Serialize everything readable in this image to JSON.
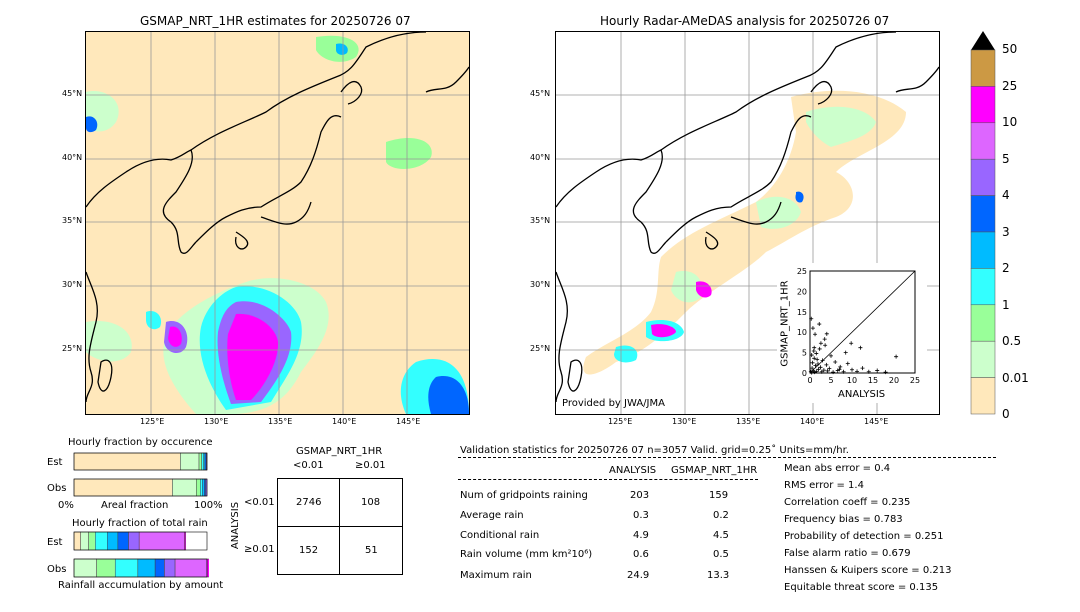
{
  "left_map": {
    "title": "GSMAP_NRT_1HR estimates for 20250726 07",
    "lat_labels": [
      "45°N",
      "40°N",
      "35°N",
      "30°N",
      "25°N"
    ],
    "lon_labels": [
      "125°E",
      "130°E",
      "135°E",
      "140°E",
      "145°E"
    ]
  },
  "right_map": {
    "title": "Hourly Radar-AMeDAS analysis for 20250726 07",
    "lat_labels": [
      "45°N",
      "40°N",
      "35°N",
      "30°N",
      "25°N"
    ],
    "lon_labels": [
      "125°E",
      "130°E",
      "135°E",
      "140°E",
      "145°E"
    ],
    "credit": "Provided by JWA/JMA"
  },
  "colorbar": {
    "labels": [
      "50",
      "25",
      "10",
      "5",
      "4",
      "3",
      "2",
      "1",
      "0.5",
      "0.01",
      "0"
    ],
    "colors": [
      "#cc9944",
      "#ff00ff",
      "#dd66ff",
      "#9966ff",
      "#0066ff",
      "#00bbff",
      "#33ffff",
      "#99ff99",
      "#ccffcc",
      "#ffe8bb"
    ]
  },
  "chart_data": [
    {
      "type": "scatter",
      "title": "",
      "xlabel": "ANALYSIS",
      "ylabel": "GSMAP_NRT_1HR",
      "xlim": [
        0,
        25
      ],
      "ylim": [
        0,
        25
      ],
      "xticks": [
        "0",
        "5",
        "10",
        "15",
        "20",
        "25"
      ],
      "yticks": [
        "0",
        "5",
        "10",
        "15",
        "20",
        "25"
      ],
      "points": [
        [
          0.2,
          0.3
        ],
        [
          0.4,
          0.1
        ],
        [
          0.5,
          1.2
        ],
        [
          0.6,
          2.5
        ],
        [
          0.8,
          0.5
        ],
        [
          1.0,
          3.6
        ],
        [
          1.1,
          0.2
        ],
        [
          1.3,
          1.8
        ],
        [
          1.5,
          4.8
        ],
        [
          1.6,
          0.4
        ],
        [
          1.9,
          2.2
        ],
        [
          2.0,
          0.9
        ],
        [
          2.3,
          5.9
        ],
        [
          2.5,
          1.4
        ],
        [
          2.8,
          0.3
        ],
        [
          3.0,
          3.1
        ],
        [
          3.3,
          0.7
        ],
        [
          3.6,
          6.8
        ],
        [
          3.9,
          2.0
        ],
        [
          4.2,
          0.5
        ],
        [
          4.6,
          1.1
        ],
        [
          5.0,
          4.2
        ],
        [
          5.5,
          0.2
        ],
        [
          6.0,
          2.7
        ],
        [
          6.6,
          0.6
        ],
        [
          7.2,
          1.5
        ],
        [
          8.0,
          0.3
        ],
        [
          9.0,
          2.3
        ],
        [
          10.0,
          0.8
        ],
        [
          11.2,
          0.4
        ],
        [
          12.5,
          1.2
        ],
        [
          14.0,
          0.3
        ],
        [
          16.0,
          0.6
        ],
        [
          18.0,
          0.2
        ],
        [
          20.5,
          4.0
        ],
        [
          1.2,
          9.5
        ],
        [
          0.7,
          11.0
        ],
        [
          2.2,
          12.0
        ],
        [
          3.5,
          8.3
        ],
        [
          0.3,
          13.3
        ],
        [
          1.0,
          6.2
        ],
        [
          2.6,
          7.3
        ],
        [
          0.4,
          4.4
        ],
        [
          0.9,
          5.4
        ],
        [
          1.7,
          3.3
        ],
        [
          4.0,
          9.6
        ],
        [
          7.0,
          0.9
        ],
        [
          8.5,
          5.0
        ],
        [
          12.0,
          6.2
        ],
        [
          9.8,
          7.3
        ]
      ]
    },
    {
      "type": "bar",
      "title": "Hourly fraction by occurence",
      "categories": [
        "Est",
        "Obs"
      ],
      "xlabels": [
        "0%",
        "Areal fraction",
        "100%"
      ],
      "series": [
        {
          "values": [
            0.8,
            0.74
          ],
          "color": "#ffe8bb"
        },
        {
          "values": [
            0.14,
            0.18
          ],
          "color": "#ccffcc"
        },
        {
          "values": [
            0.02,
            0.03
          ],
          "color": "#99ff99"
        },
        {
          "values": [
            0.015,
            0.015
          ],
          "color": "#33ffff"
        },
        {
          "values": [
            0.01,
            0.015
          ],
          "color": "#00bbff"
        },
        {
          "values": [
            0.01,
            0.01
          ],
          "color": "#0066ff"
        },
        {
          "values": [
            0.005,
            0.01
          ],
          "color": "#9966ff"
        }
      ]
    },
    {
      "type": "bar",
      "title": "Hourly fraction of total rain",
      "categories": [
        "Est",
        "Obs"
      ],
      "xlabels": [
        "Rainfall accumulation by amount"
      ],
      "series": [
        {
          "values": [
            0.05,
            0.0
          ],
          "color": "#ffe8bb"
        },
        {
          "values": [
            0.06,
            0.17
          ],
          "color": "#ccffcc"
        },
        {
          "values": [
            0.05,
            0.14
          ],
          "color": "#99ff99"
        },
        {
          "values": [
            0.09,
            0.17
          ],
          "color": "#33ffff"
        },
        {
          "values": [
            0.08,
            0.13
          ],
          "color": "#00bbff"
        },
        {
          "values": [
            0.08,
            0.07
          ],
          "color": "#0066ff"
        },
        {
          "values": [
            0.08,
            0.08
          ],
          "color": "#9966ff"
        },
        {
          "values": [
            0.34,
            0.24
          ],
          "color": "#dd66ff"
        },
        {
          "values": [
            0.01,
            0.33
          ],
          "color": "#ff00ff"
        }
      ]
    },
    {
      "type": "table",
      "title": "GSMAP_NRT_1HR",
      "col_headers": [
        "<0.01",
        "≥0.01"
      ],
      "row_label": "ANALYSIS",
      "row_headers": [
        "<0.01",
        "≥0.01"
      ],
      "cells": [
        [
          "2746",
          "108"
        ],
        [
          "152",
          "51"
        ]
      ]
    }
  ],
  "validation": {
    "title": "Validation statistics for 20250726 07  n=3057 Valid. grid=0.25˚ Units=mm/hr.",
    "col1": "ANALYSIS",
    "col2": "GSMAP_NRT_1HR",
    "rows": [
      {
        "label": "Num of gridpoints raining",
        "a": "203",
        "g": "159"
      },
      {
        "label": "Average rain",
        "a": "0.3",
        "g": "0.2"
      },
      {
        "label": "Conditional rain",
        "a": "4.9",
        "g": "4.5"
      },
      {
        "label": "Rain volume (mm km²10⁶)",
        "a": "0.6",
        "g": "0.5"
      },
      {
        "label": "Maximum rain",
        "a": "24.9",
        "g": "13.3"
      }
    ],
    "scores": [
      "Mean abs error =    0.4",
      "RMS error =    1.4",
      "Correlation coeff =  0.235",
      "Frequency bias =  0.783",
      "Probability of detection =  0.251",
      "False alarm ratio =  0.679",
      "Hanssen & Kuipers score =  0.213",
      "Equitable threat score =  0.135"
    ]
  }
}
